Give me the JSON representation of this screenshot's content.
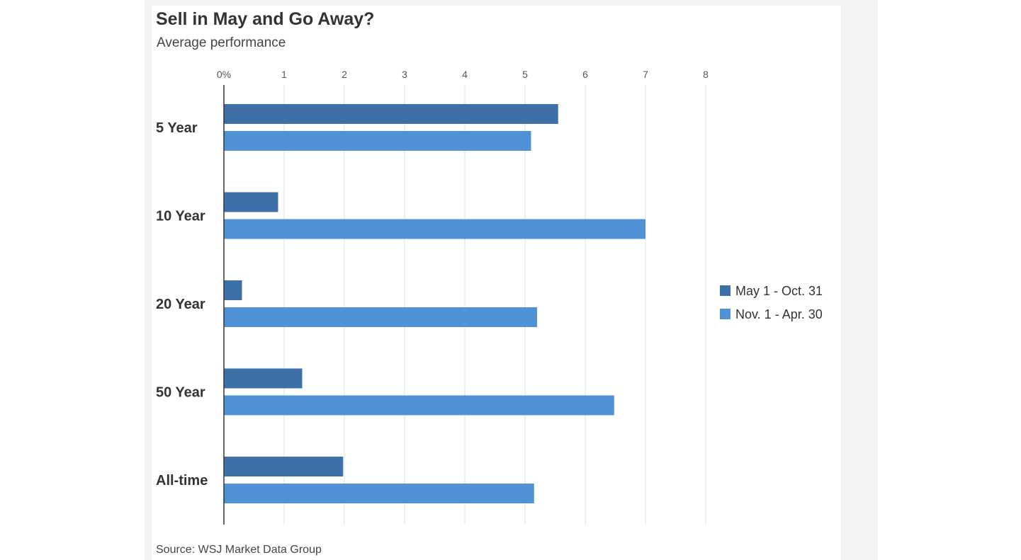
{
  "chart_data": {
    "type": "bar",
    "orientation": "horizontal",
    "title": "Sell in May and Go Away?",
    "subtitle": "Average performance",
    "source": "Source: WSJ Market Data Group",
    "categories": [
      "5 Year",
      "10 Year",
      "20 Year",
      "50 Year",
      "All-time"
    ],
    "x_ticks": [
      "0%",
      "1",
      "2",
      "3",
      "4",
      "5",
      "6",
      "7",
      "8"
    ],
    "xlim": [
      0,
      8
    ],
    "grid": true,
    "legend_position": "right",
    "series": [
      {
        "name": "May 1 - Oct. 31",
        "color": "#3d6fa8",
        "values": [
          5.55,
          0.9,
          0.3,
          1.3,
          1.98
        ]
      },
      {
        "name": "Nov. 1 - Apr. 30",
        "color": "#4f93d6",
        "values": [
          5.1,
          7.0,
          5.2,
          6.48,
          5.15
        ]
      }
    ]
  }
}
